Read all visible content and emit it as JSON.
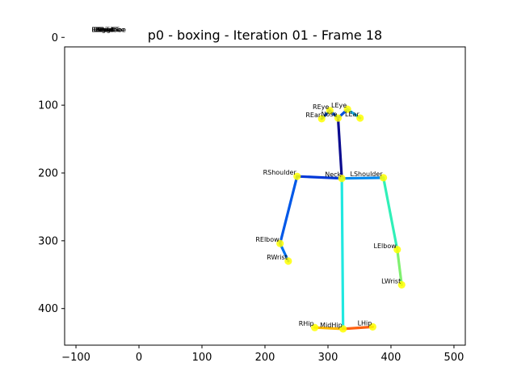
{
  "chart_data": {
    "type": "scatter",
    "title": "p0 - boxing - Iteration 01 - Frame 18",
    "xlabel": "",
    "ylabel": "",
    "xlim": [
      -118,
      518
    ],
    "ylim": [
      454,
      14
    ],
    "y_inverted": true,
    "grid": false,
    "xticks": [
      -100,
      0,
      100,
      200,
      300,
      400,
      500
    ],
    "yticks": [
      0,
      100,
      200,
      300,
      400
    ],
    "marker_color": "#ffff00",
    "keypoints": [
      {
        "name": "Nose",
        "x": 316,
        "y": 119
      },
      {
        "name": "Neck",
        "x": 322,
        "y": 208
      },
      {
        "name": "RShoulder",
        "x": 251,
        "y": 205
      },
      {
        "name": "RElbow",
        "x": 224,
        "y": 304
      },
      {
        "name": "RWrist",
        "x": 237,
        "y": 330
      },
      {
        "name": "LShoulder",
        "x": 388,
        "y": 207
      },
      {
        "name": "LElbow",
        "x": 410,
        "y": 313
      },
      {
        "name": "LWrist",
        "x": 417,
        "y": 365
      },
      {
        "name": "MidHip",
        "x": 324,
        "y": 430
      },
      {
        "name": "RHip",
        "x": 279,
        "y": 428
      },
      {
        "name": "LHip",
        "x": 371,
        "y": 427
      },
      {
        "name": "REye",
        "x": 303,
        "y": 108
      },
      {
        "name": "LEye",
        "x": 331,
        "y": 106
      },
      {
        "name": "REar",
        "x": 290,
        "y": 120
      },
      {
        "name": "LEar",
        "x": 351,
        "y": 119
      }
    ],
    "bones": [
      {
        "from": "Nose",
        "to": "Neck",
        "color": "#0a0a8f"
      },
      {
        "from": "Neck",
        "to": "RShoulder",
        "color": "#0038d8"
      },
      {
        "from": "RShoulder",
        "to": "RElbow",
        "color": "#0058e8"
      },
      {
        "from": "RElbow",
        "to": "RWrist",
        "color": "#0070f0"
      },
      {
        "from": "Neck",
        "to": "LShoulder",
        "color": "#0088f0"
      },
      {
        "from": "LShoulder",
        "to": "LElbow",
        "color": "#30f0b8"
      },
      {
        "from": "LElbow",
        "to": "LWrist",
        "color": "#80f070"
      },
      {
        "from": "Neck",
        "to": "MidHip",
        "color": "#20e8e0"
      },
      {
        "from": "MidHip",
        "to": "RHip",
        "color": "#ffb800"
      },
      {
        "from": "MidHip",
        "to": "LHip",
        "color": "#ff6010"
      },
      {
        "from": "Nose",
        "to": "REye",
        "color": "#0050e0"
      },
      {
        "from": "Nose",
        "to": "LEye",
        "color": "#0050e0"
      },
      {
        "from": "REye",
        "to": "REar",
        "color": "#0048d8"
      },
      {
        "from": "LEye",
        "to": "LEar",
        "color": "#20b8f0"
      }
    ],
    "stray_labels": [
      "RSmallToe",
      "LSmallToe",
      "RBigToe",
      "LBigToe",
      "RHeel",
      "LHeel",
      "RKnee",
      "LKnee"
    ],
    "stray_labels_position": {
      "x": -75,
      "y": -8
    }
  }
}
